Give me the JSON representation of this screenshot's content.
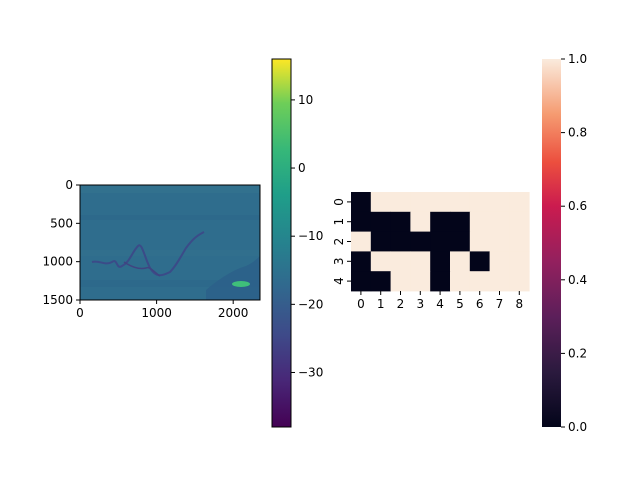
{
  "chart_data": [
    {
      "type": "heatmap",
      "x_ticks": [
        "0",
        "1000",
        "2000"
      ],
      "y_ticks": [
        "0",
        "500",
        "1000",
        "1500"
      ],
      "xlim": [
        0,
        2350
      ],
      "ylim": [
        1500,
        0
      ],
      "colormap": "viridis",
      "background_value": -20,
      "colorbar": {
        "range": [
          -38,
          16
        ],
        "ticks": [
          "10",
          "0",
          "−10",
          "−20",
          "−30"
        ]
      }
    },
    {
      "type": "heatmap",
      "x_ticks": [
        "0",
        "1",
        "2",
        "3",
        "4",
        "5",
        "6",
        "7",
        "8"
      ],
      "y_ticks": [
        "0",
        "1",
        "2",
        "3",
        "4"
      ],
      "values": [
        [
          0,
          1,
          1,
          1,
          1,
          1,
          1,
          1,
          1
        ],
        [
          0,
          0,
          0,
          1,
          0,
          0,
          1,
          1,
          1
        ],
        [
          1,
          0,
          0,
          0,
          0,
          0,
          1,
          1,
          1
        ],
        [
          0,
          1,
          1,
          1,
          0,
          1,
          0,
          1,
          1
        ],
        [
          0,
          0,
          1,
          1,
          0,
          1,
          1,
          1,
          1
        ]
      ],
      "colormap": "rocket",
      "colors": {
        "0": "#03051a",
        "1": "#faebdd"
      },
      "colorbar": {
        "range": [
          0,
          1
        ],
        "ticks": [
          "0.0",
          "0.2",
          "0.4",
          "0.6",
          "0.8",
          "1.0"
        ]
      }
    }
  ]
}
